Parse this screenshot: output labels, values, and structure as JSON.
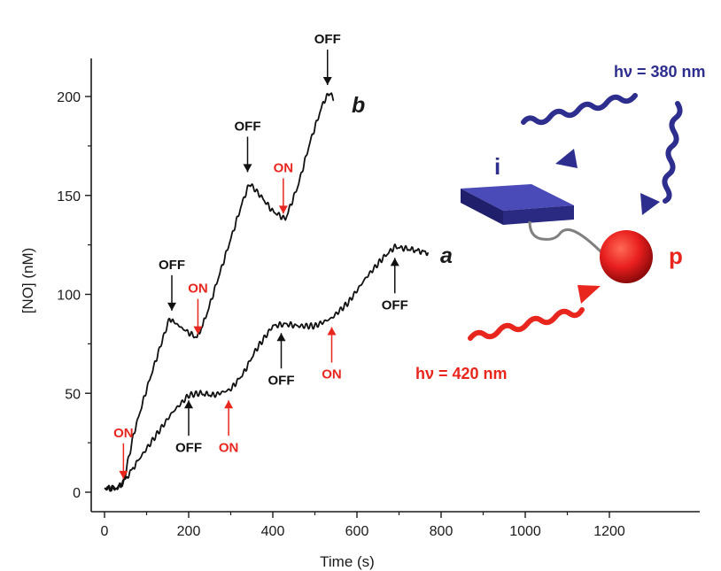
{
  "chart_data": {
    "type": "line",
    "xlabel": "Time (s)",
    "ylabel": "[NO] (nM)",
    "xlim": [
      0,
      1200
    ],
    "ylim": [
      -10,
      220
    ],
    "xticks": [
      0,
      200,
      400,
      600,
      800,
      1000,
      1200
    ],
    "yticks": [
      0,
      50,
      100,
      150,
      200
    ],
    "grid": false,
    "series": [
      {
        "name": "a",
        "color": "#111111",
        "x": [
          0,
          30,
          45,
          80,
          120,
          160,
          200,
          225,
          260,
          300,
          330,
          360,
          400,
          430,
          460,
          500,
          540,
          580,
          620,
          660,
          690,
          720,
          770
        ],
        "y": [
          2,
          2,
          5,
          16,
          28,
          40,
          49,
          50,
          49,
          52,
          60,
          72,
          84,
          85,
          84,
          84,
          88,
          96,
          108,
          118,
          124,
          123,
          121
        ]
      },
      {
        "name": "b",
        "color": "#111111",
        "x": [
          0,
          30,
          45,
          70,
          100,
          130,
          155,
          165,
          190,
          220,
          240,
          270,
          300,
          330,
          345,
          370,
          400,
          430,
          460,
          490,
          520,
          535,
          545
        ],
        "y": [
          2,
          2,
          5,
          30,
          52,
          72,
          88,
          86,
          82,
          78,
          88,
          108,
          128,
          148,
          156,
          150,
          142,
          138,
          155,
          178,
          197,
          202,
          198
        ]
      }
    ],
    "annotations": [
      {
        "text": "ON",
        "color": "#e8261e",
        "x": 45,
        "y": 5,
        "direction": "down"
      },
      {
        "text": "OFF",
        "color": "#111111",
        "x": 160,
        "y": 90,
        "direction": "down"
      },
      {
        "text": "ON",
        "color": "#e8261e",
        "x": 222,
        "y": 78,
        "direction": "down"
      },
      {
        "text": "OFF",
        "color": "#111111",
        "x": 340,
        "y": 160,
        "direction": "down"
      },
      {
        "text": "ON",
        "color": "#e8261e",
        "x": 425,
        "y": 139,
        "direction": "down"
      },
      {
        "text": "OFF",
        "color": "#111111",
        "x": 530,
        "y": 204,
        "direction": "down"
      },
      {
        "text": "OFF",
        "color": "#111111",
        "x": 200,
        "y": 50,
        "direction": "up"
      },
      {
        "text": "ON",
        "color": "#e8261e",
        "x": 295,
        "y": 50,
        "direction": "up"
      },
      {
        "text": "OFF",
        "color": "#111111",
        "x": 420,
        "y": 84,
        "direction": "up"
      },
      {
        "text": "ON",
        "color": "#e8261e",
        "x": 540,
        "y": 87,
        "direction": "up"
      },
      {
        "text": "OFF",
        "color": "#111111",
        "x": 690,
        "y": 122,
        "direction": "up"
      }
    ]
  },
  "inset": {
    "label_i": "i",
    "label_p": "p",
    "hv_380": "hν = 380 nm",
    "hv_420": "hν = 420 nm",
    "blue_color": "#2e2e8e",
    "red_color": "#e8261e"
  }
}
